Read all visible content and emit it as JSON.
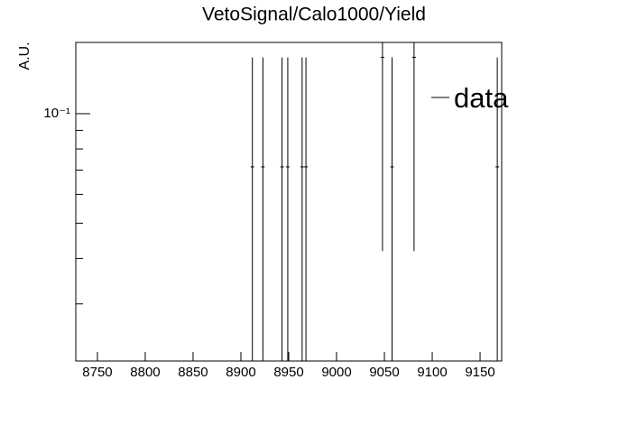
{
  "chart_data": {
    "type": "errorbar",
    "title": "VetoSignal/Calo1000/Yield",
    "y_label": "A.U.",
    "x": [
      8912,
      8923,
      8943,
      8949,
      8964,
      8968,
      9048,
      9058,
      9081,
      9168
    ],
    "series": [
      {
        "name": "data",
        "color": "#000000",
        "values": [
          0.0714,
          0.0714,
          0.0714,
          0.0714,
          0.0714,
          0.0714,
          0.1429,
          0.0714,
          0.1429,
          0.0714
        ],
        "errors": [
          0.0714,
          0.0714,
          0.0714,
          0.0714,
          0.0714,
          0.0714,
          0.101,
          0.0714,
          0.101,
          0.0714
        ]
      }
    ],
    "xlim": [
      8727.4,
      9172.6
    ],
    "xticks": [
      8750,
      8800,
      8850,
      8900,
      8950,
      9000,
      9050,
      9100,
      9150
    ],
    "ylim": [
      0.0209,
      0.157
    ],
    "ylog": true,
    "yticks": [
      {
        "value": 0.1,
        "label": "10⁻¹"
      }
    ],
    "yminor_ticks": [
      0.03,
      0.04,
      0.05,
      0.06,
      0.07,
      0.08,
      0.09
    ],
    "legend": "top-right"
  }
}
